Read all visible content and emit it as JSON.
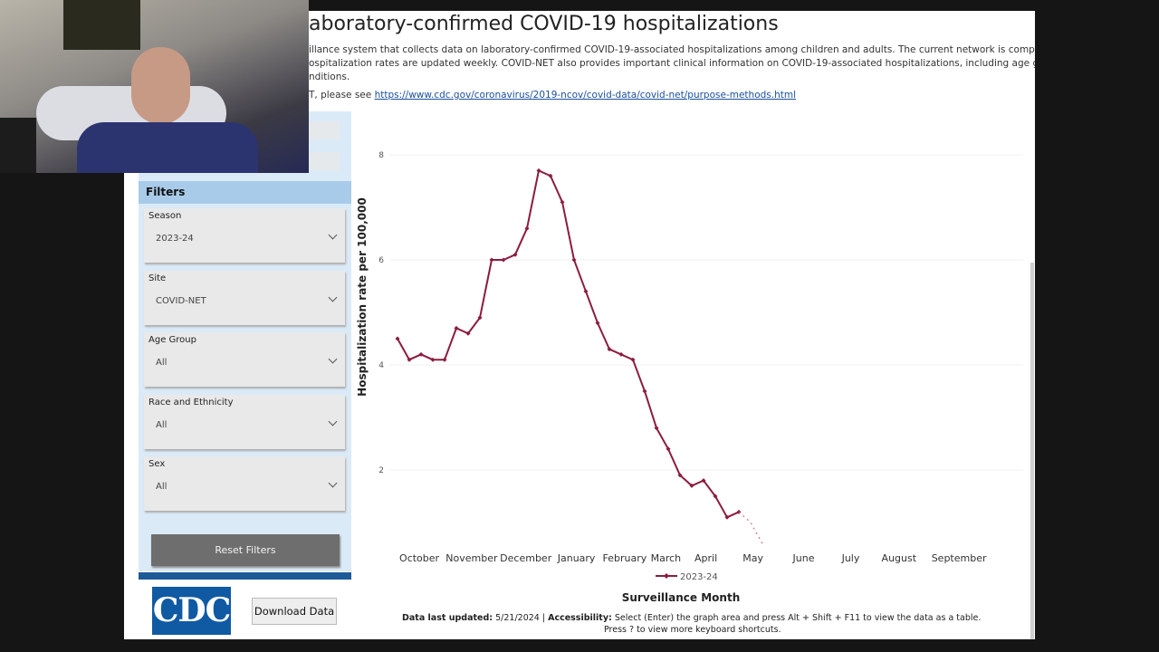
{
  "header": {
    "title": "aboratory-confirmed COVID-19 hospitalizations",
    "description": [
      "illance system that collects data on laboratory-confirmed COVID-19-associated hospitalizations among children and adults. The current network is comprised of over",
      "ospitalization rates are updated weekly. COVID-NET also provides important clinical information on COVID-19-associated hospitalizations, including age group, sex,",
      "nditions."
    ],
    "link_prefix": "T, please see",
    "link": "https://www.cdc.gov/coronavirus/2019-ncov/covid-data/covid-net/purpose-methods.html"
  },
  "filters": {
    "title": "Filters",
    "items": [
      {
        "label": "Season",
        "value": "2023-24"
      },
      {
        "label": "Site",
        "value": "COVID-NET"
      },
      {
        "label": "Age Group",
        "value": "All"
      },
      {
        "label": "Race and Ethnicity",
        "value": "All"
      },
      {
        "label": "Sex",
        "value": "All"
      }
    ],
    "reset": "Reset Filters"
  },
  "logo": "CDC",
  "download": "Download Data",
  "footer": {
    "updated_label": "Data last updated:",
    "updated_value": "5/21/2024 |",
    "access_label": "Accessibility:",
    "access_text": "Select (Enter) the graph area and press Alt + Shift + F11 to view the data as a table.",
    "access_text2": "Press ? to view more keyboard shortcuts."
  },
  "chart_data": {
    "type": "line",
    "x_label": "Surveillance Month",
    "y_label": "Hospitalization rate per 100,000",
    "series": [
      {
        "name": "2023-24",
        "color": "#8c1c3e",
        "x": [
          0,
          1,
          2,
          3,
          4,
          5,
          6,
          7,
          8,
          9,
          10,
          11,
          12,
          13,
          14,
          15,
          16,
          17,
          18,
          19,
          20,
          21,
          22,
          23,
          24,
          25,
          26,
          27,
          28,
          29
        ],
        "values": [
          4.5,
          4.1,
          4.2,
          4.1,
          4.1,
          4.7,
          4.6,
          4.9,
          6.0,
          6.0,
          6.1,
          6.6,
          7.7,
          7.6,
          7.1,
          6.0,
          5.4,
          4.8,
          4.3,
          4.2,
          4.1,
          3.5,
          2.8,
          2.4,
          1.9,
          1.7,
          1.8,
          1.5,
          1.1,
          1.2
        ]
      },
      {
        "color": "#d06d86",
        "dashed": true,
        "x": [
          29,
          30,
          31
        ],
        "values": [
          1.2,
          1.0,
          0.6
        ]
      }
    ],
    "xlim": [
      0,
      50
    ],
    "ylim": [
      0,
      8
    ],
    "xticks": [
      {
        "value": 1.85,
        "label": "October"
      },
      {
        "value": 6.3,
        "label": "November"
      },
      {
        "value": 10.9,
        "label": "December"
      },
      {
        "value": 15.2,
        "label": "January"
      },
      {
        "value": 19.3,
        "label": "February"
      },
      {
        "value": 22.8,
        "label": "March"
      },
      {
        "value": 26.2,
        "label": "April"
      },
      {
        "value": 30.2,
        "label": "May"
      },
      {
        "value": 34.5,
        "label": "June"
      },
      {
        "value": 38.5,
        "label": "July"
      },
      {
        "value": 42.6,
        "label": "August"
      },
      {
        "value": 47.7,
        "label": "September"
      }
    ],
    "yticks": [
      2,
      4,
      6,
      8
    ],
    "grid": true
  }
}
